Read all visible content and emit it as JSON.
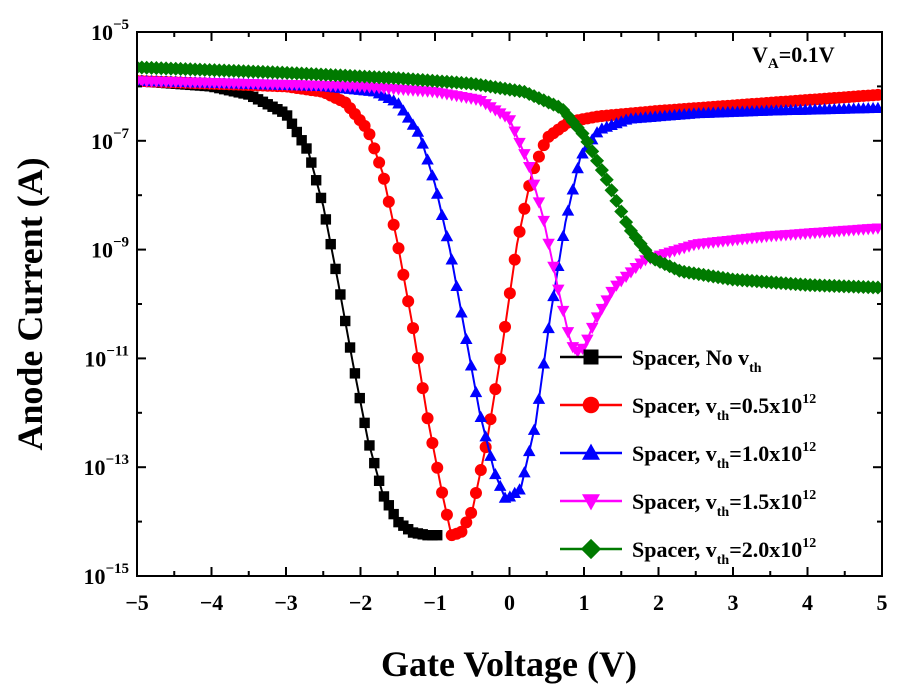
{
  "chart_data": {
    "type": "scatter",
    "title": "",
    "xlabel": "Gate Voltage (V)",
    "ylabel": "Anode Current (A)",
    "xlim": [
      -5,
      5
    ],
    "ylim_log10": [
      -15,
      -5
    ],
    "y_scale": "log",
    "grid": false,
    "legend_position": "bottom-right",
    "x_ticks": [
      "-5",
      "-4",
      "-3",
      "-2",
      "-1",
      "0",
      "1",
      "2",
      "3",
      "4",
      "5"
    ],
    "y_ticks": [
      {
        "base": "10",
        "exp": "-15"
      },
      {
        "base": "10",
        "exp": "-13"
      },
      {
        "base": "10",
        "exp": "-11"
      },
      {
        "base": "10",
        "exp": "-9"
      },
      {
        "base": "10",
        "exp": "-7"
      },
      {
        "base": "10",
        "exp": "-5"
      }
    ],
    "annotation": {
      "main": "V",
      "sub": "A",
      "rest": "=0.1V"
    },
    "series": [
      {
        "name_parts": [
          "Spacer, No v",
          "th",
          "",
          ""
        ],
        "color": "#000000",
        "marker": "square",
        "curve": [
          [
            -5,
            -5.9
          ],
          [
            -4,
            -6.0
          ],
          [
            -3.5,
            -6.15
          ],
          [
            -3.0,
            -6.5
          ],
          [
            -2.7,
            -7.2
          ],
          [
            -2.5,
            -8.2
          ],
          [
            -2.3,
            -9.6
          ],
          [
            -2.1,
            -11.1
          ],
          [
            -1.9,
            -12.5
          ],
          [
            -1.7,
            -13.5
          ],
          [
            -1.5,
            -14.0
          ],
          [
            -1.3,
            -14.2
          ],
          [
            -1.1,
            -14.25
          ],
          [
            -0.95,
            -14.25
          ]
        ]
      },
      {
        "name_parts": [
          "Spacer, v",
          "th",
          "=0.5x10",
          "12"
        ],
        "color": "#ff0000",
        "marker": "circle",
        "curve": [
          [
            -5,
            -5.9
          ],
          [
            -3.0,
            -6.0
          ],
          [
            -2.5,
            -6.1
          ],
          [
            -2.2,
            -6.3
          ],
          [
            -1.9,
            -6.8
          ],
          [
            -1.7,
            -7.6
          ],
          [
            -1.5,
            -8.9
          ],
          [
            -1.3,
            -10.4
          ],
          [
            -1.1,
            -12.1
          ],
          [
            -0.9,
            -13.5
          ],
          [
            -0.78,
            -14.25
          ],
          [
            -0.65,
            -14.2
          ],
          [
            -0.5,
            -13.8
          ],
          [
            -0.3,
            -12.5
          ],
          [
            -0.1,
            -10.8
          ],
          [
            0.1,
            -8.9
          ],
          [
            0.3,
            -7.6
          ],
          [
            0.5,
            -6.95
          ],
          [
            0.8,
            -6.65
          ],
          [
            1.2,
            -6.55
          ],
          [
            2,
            -6.45
          ],
          [
            3,
            -6.35
          ],
          [
            4,
            -6.25
          ],
          [
            5,
            -6.15
          ]
        ]
      },
      {
        "name_parts": [
          "Spacer, v",
          "th",
          "=1.0x10",
          "12"
        ],
        "color": "#0000ff",
        "marker": "triangle-up",
        "curve": [
          [
            -5,
            -5.9
          ],
          [
            -2.5,
            -6.0
          ],
          [
            -1.8,
            -6.1
          ],
          [
            -1.5,
            -6.3
          ],
          [
            -1.2,
            -6.9
          ],
          [
            -1.0,
            -7.8
          ],
          [
            -0.8,
            -9.0
          ],
          [
            -0.6,
            -10.5
          ],
          [
            -0.4,
            -12.0
          ],
          [
            -0.2,
            -13.1
          ],
          [
            -0.05,
            -13.6
          ],
          [
            0.15,
            -13.4
          ],
          [
            0.35,
            -12.2
          ],
          [
            0.55,
            -10.2
          ],
          [
            0.75,
            -8.5
          ],
          [
            0.95,
            -7.3
          ],
          [
            1.2,
            -6.8
          ],
          [
            1.6,
            -6.6
          ],
          [
            2.5,
            -6.5
          ],
          [
            3.5,
            -6.45
          ],
          [
            5,
            -6.4
          ]
        ]
      },
      {
        "name_parts": [
          "Spacer, v",
          "th",
          "=1.5x10",
          "12"
        ],
        "color": "#ff00ff",
        "marker": "triangle-down",
        "curve": [
          [
            -5,
            -5.9
          ],
          [
            -2.0,
            -6.0
          ],
          [
            -1.0,
            -6.1
          ],
          [
            -0.4,
            -6.25
          ],
          [
            0.0,
            -6.6
          ],
          [
            0.25,
            -7.4
          ],
          [
            0.45,
            -8.4
          ],
          [
            0.65,
            -9.7
          ],
          [
            0.8,
            -10.6
          ],
          [
            0.88,
            -10.9
          ],
          [
            1.0,
            -10.8
          ],
          [
            1.15,
            -10.3
          ],
          [
            1.4,
            -9.7
          ],
          [
            1.8,
            -9.2
          ],
          [
            2.5,
            -8.9
          ],
          [
            3.5,
            -8.75
          ],
          [
            5,
            -8.6
          ]
        ]
      },
      {
        "name_parts": [
          "Spacer, v",
          "th",
          "=2.0x10",
          "12"
        ],
        "color": "#007a00",
        "marker": "diamond",
        "curve": [
          [
            -5,
            -5.65
          ],
          [
            -3.0,
            -5.75
          ],
          [
            -1.5,
            -5.85
          ],
          [
            -0.5,
            -5.95
          ],
          [
            0.2,
            -6.1
          ],
          [
            0.7,
            -6.4
          ],
          [
            1.0,
            -6.9
          ],
          [
            1.3,
            -7.7
          ],
          [
            1.6,
            -8.6
          ],
          [
            1.9,
            -9.15
          ],
          [
            2.3,
            -9.4
          ],
          [
            3.0,
            -9.55
          ],
          [
            4.0,
            -9.65
          ],
          [
            5,
            -9.7
          ]
        ]
      }
    ]
  }
}
